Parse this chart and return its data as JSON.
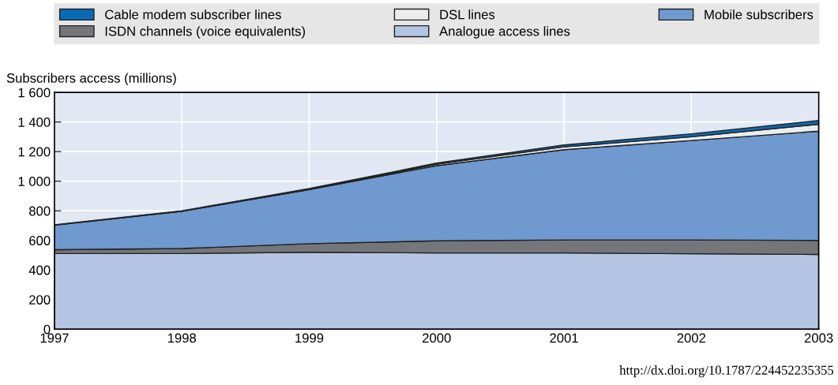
{
  "chart_data": {
    "type": "area",
    "stacked": true,
    "ylabel": "Subscribers access (millions)",
    "x": [
      1997,
      1998,
      1999,
      2000,
      2001,
      2002,
      2003
    ],
    "series": [
      {
        "name": "Analogue access lines",
        "color": "#b4c5e4",
        "values": [
          511,
          511,
          520,
          515,
          515,
          510,
          505
        ]
      },
      {
        "name": "ISDN channels (voice equivalents)",
        "color": "#757679",
        "values": [
          26,
          34,
          58,
          82,
          88,
          93,
          95
        ]
      },
      {
        "name": "Mobile subscribers",
        "color": "#6f99cf",
        "values": [
          166,
          252,
          365,
          508,
          610,
          672,
          738
        ]
      },
      {
        "name": "DSL lines",
        "color": "#ececec",
        "values": [
          0,
          0,
          2,
          10,
          19,
          25,
          47
        ]
      },
      {
        "name": "Cable modem subscriber lines",
        "color": "#0a6ab4",
        "values": [
          2,
          3,
          5,
          7,
          13,
          20,
          25
        ]
      }
    ],
    "xlim": [
      1997,
      2003
    ],
    "xticks": [
      1997,
      1998,
      1999,
      2000,
      2001,
      2002,
      2003
    ],
    "ylim": [
      0,
      1600
    ],
    "yticks": [
      0,
      200,
      400,
      600,
      800,
      {
        "value": 1000,
        "label": "1 000"
      },
      {
        "value": 1200,
        "label": "1 200"
      },
      {
        "value": 1400,
        "label": "1 400"
      },
      {
        "value": 1600,
        "label": "1 600"
      }
    ],
    "grid": true,
    "legend": "top",
    "annotations": [
      "http://dx.doi.org/10.1787/224452235355"
    ]
  }
}
